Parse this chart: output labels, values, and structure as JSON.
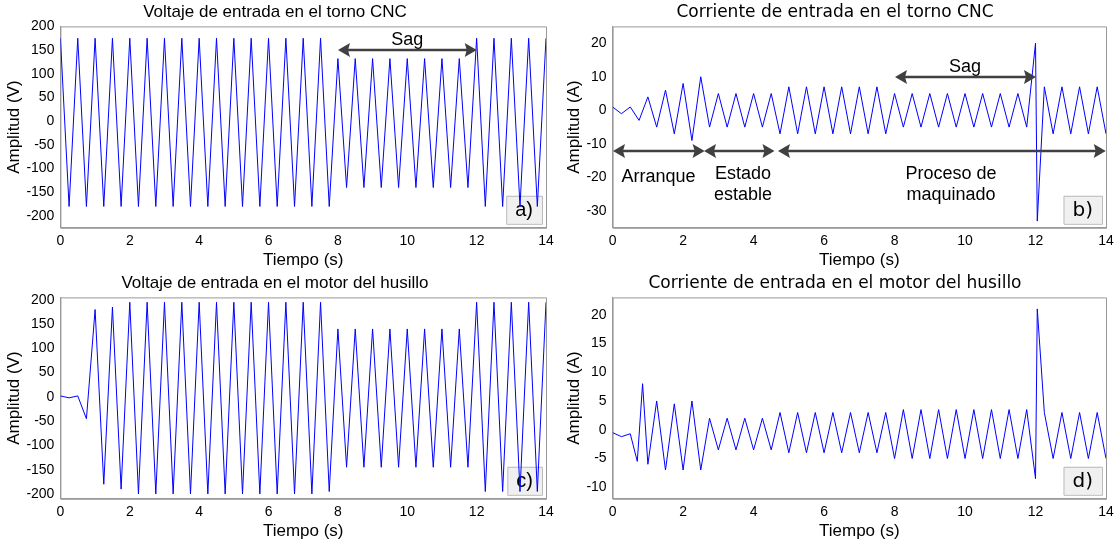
{
  "chart_data": [
    {
      "type": "line",
      "title": "Voltaje de entrada en el torno CNC",
      "xlabel": "Tiempo (s)",
      "ylabel": "Amplitud (V)",
      "xlim": [
        0,
        14
      ],
      "xticks": [
        0,
        2,
        4,
        6,
        8,
        10,
        12,
        14
      ],
      "ylim": [
        -225,
        200
      ],
      "yticks": [
        -200,
        -150,
        -100,
        -50,
        0,
        50,
        100,
        150,
        200
      ],
      "annotations": [
        "Sag",
        "a)"
      ],
      "series": [
        {
          "color": "#0000ff",
          "x": [
            0,
            0.25,
            0.5,
            0.75,
            1,
            1.25,
            1.5,
            1.75,
            2,
            2.25,
            2.5,
            2.75,
            3,
            3.25,
            3.5,
            3.75,
            4,
            4.25,
            4.5,
            4.75,
            5,
            5.25,
            5.5,
            5.75,
            6,
            6.25,
            6.5,
            6.75,
            7,
            7.25,
            7.5,
            7.75,
            8,
            8.25,
            8.5,
            8.75,
            9,
            9.25,
            9.5,
            9.75,
            10,
            10.25,
            10.5,
            10.75,
            11,
            11.25,
            11.5,
            11.75,
            12,
            12.25,
            12.5,
            12.75,
            13,
            13.25,
            13.5,
            13.75,
            14
          ],
          "values": [
            175,
            -180,
            175,
            -180,
            175,
            -180,
            175,
            -180,
            175,
            -180,
            175,
            -180,
            175,
            -180,
            175,
            -180,
            175,
            -180,
            175,
            -180,
            175,
            -180,
            175,
            -180,
            175,
            -180,
            175,
            -180,
            175,
            -180,
            175,
            -180,
            132,
            -140,
            132,
            -140,
            132,
            -140,
            132,
            -140,
            132,
            -140,
            132,
            -140,
            132,
            -140,
            132,
            -140,
            175,
            -180,
            175,
            -180,
            175,
            -180,
            175,
            -180,
            175
          ]
        }
      ]
    },
    {
      "type": "line",
      "title": "Corriente de entrada en el torno CNC",
      "xlabel": "Tiempo (s)",
      "ylabel": "Amplitud (A)",
      "xlim": [
        0,
        14
      ],
      "xticks": [
        0,
        2,
        4,
        6,
        8,
        10,
        12,
        14
      ],
      "ylim": [
        -35,
        25
      ],
      "yticks": [
        -30,
        -20,
        -10,
        0,
        10,
        20
      ],
      "annotations": [
        "Sag",
        "Arranque",
        "Estado estable",
        "Proceso de maquinado",
        "b)"
      ],
      "series": [
        {
          "color": "#0000ff",
          "x": [
            0,
            0.25,
            0.5,
            0.75,
            1,
            1.25,
            1.5,
            1.75,
            2,
            2.25,
            2.5,
            2.75,
            3,
            3.25,
            3.5,
            3.75,
            4,
            4.25,
            4.5,
            4.75,
            5,
            5.25,
            5.5,
            5.75,
            6,
            6.25,
            6.5,
            6.75,
            7,
            7.25,
            7.5,
            7.75,
            8,
            8.25,
            8.5,
            8.75,
            9,
            9.25,
            9.5,
            9.75,
            10,
            10.25,
            10.5,
            10.75,
            11,
            11.25,
            11.5,
            11.75,
            12,
            12.05,
            12.25,
            12.5,
            12.75,
            13,
            13.25,
            13.5,
            13.75,
            14
          ],
          "values": [
            1,
            -1,
            1,
            -3,
            4,
            -5,
            6,
            -7,
            8,
            -9,
            10,
            -5,
            5,
            -5,
            5,
            -5,
            5,
            -5,
            5,
            -7,
            7,
            -7,
            7,
            -7,
            7,
            -7,
            7,
            -7,
            7,
            -7,
            7,
            -7,
            5,
            -5,
            5,
            -5,
            5,
            -5,
            5,
            -5,
            5,
            -5,
            5,
            -5,
            5,
            -5,
            5,
            -5,
            20,
            -33,
            7,
            -7,
            7,
            -7,
            7,
            -7,
            7,
            -7
          ]
        }
      ]
    },
    {
      "type": "line",
      "title": "Voltaje de entrada en el motor del husillo",
      "xlabel": "Tiempo (s)",
      "ylabel": "Amplitud (V)",
      "xlim": [
        0,
        14
      ],
      "xticks": [
        0,
        2,
        4,
        6,
        8,
        10,
        12,
        14
      ],
      "ylim": [
        -210,
        205
      ],
      "yticks": [
        -200,
        -150,
        -100,
        -50,
        0,
        50,
        100,
        150,
        200
      ],
      "annotations": [
        "c)"
      ],
      "series": [
        {
          "color": "#0000ff",
          "x": [
            0,
            0.25,
            0.5,
            0.75,
            1,
            1.25,
            1.5,
            1.75,
            2,
            2.25,
            2.5,
            2.75,
            3,
            3.25,
            3.5,
            3.75,
            4,
            4.25,
            4.5,
            4.75,
            5,
            5.25,
            5.5,
            5.75,
            6,
            6.25,
            6.5,
            6.75,
            7,
            7.25,
            7.5,
            7.75,
            8,
            8.25,
            8.5,
            8.75,
            9,
            9.25,
            9.5,
            9.75,
            10,
            10.25,
            10.5,
            10.75,
            11,
            11.25,
            11.5,
            11.75,
            12,
            12.25,
            12.5,
            12.75,
            13,
            13.25,
            13.5,
            13.75,
            14
          ],
          "values": [
            2,
            -2,
            2,
            -45,
            180,
            -180,
            185,
            -190,
            195,
            -200,
            195,
            -200,
            195,
            -200,
            195,
            -200,
            195,
            -200,
            195,
            -200,
            195,
            -200,
            195,
            -200,
            195,
            -200,
            195,
            -200,
            195,
            -200,
            195,
            -195,
            140,
            -145,
            140,
            -145,
            140,
            -145,
            140,
            -145,
            140,
            -145,
            140,
            -145,
            140,
            -145,
            140,
            -145,
            195,
            -195,
            195,
            -195,
            195,
            -195,
            195,
            -195,
            195
          ]
        }
      ]
    },
    {
      "type": "line",
      "title": "Corriente de entrada en el motor del husillo",
      "xlabel": "Tiempo (s)",
      "ylabel": "Amplitud (A)",
      "xlim": [
        0,
        14
      ],
      "xticks": [
        0,
        2,
        4,
        6,
        8,
        10,
        12,
        14
      ],
      "ylim": [
        -12,
        23
      ],
      "yticks": [
        -10,
        -5,
        0,
        5,
        10,
        15,
        20
      ],
      "annotations": [
        "d)"
      ],
      "series": [
        {
          "color": "#0000ff",
          "x": [
            0,
            0.25,
            0.5,
            0.7,
            0.85,
            1,
            1.25,
            1.5,
            1.75,
            2,
            2.25,
            2.5,
            2.75,
            3,
            3.25,
            3.5,
            3.75,
            4,
            4.25,
            4.5,
            4.75,
            5,
            5.25,
            5.5,
            5.75,
            6,
            6.25,
            6.5,
            6.75,
            7,
            7.25,
            7.5,
            7.75,
            8,
            8.25,
            8.5,
            8.75,
            9,
            9.25,
            9.5,
            9.75,
            10,
            10.25,
            10.5,
            10.75,
            11,
            11.25,
            11.5,
            11.75,
            12,
            12.05,
            12.25,
            12.5,
            12.75,
            13,
            13.25,
            13.5,
            13.75,
            14
          ],
          "values": [
            -0.5,
            -1.2,
            -0.7,
            -5.5,
            8,
            -6,
            5,
            -7,
            4.5,
            -7,
            5,
            -7,
            2,
            -3.5,
            2,
            -3.5,
            2,
            -3.5,
            2,
            -3.5,
            3,
            -4,
            3,
            -4,
            3,
            -4,
            3,
            -4,
            3,
            -4,
            3,
            -4,
            3,
            -5,
            3.5,
            -5,
            3.5,
            -5,
            3.5,
            -5,
            3.5,
            -5,
            3.5,
            -5,
            3.5,
            -5,
            3.5,
            -5,
            3.5,
            -8.5,
            21,
            3,
            -5,
            3,
            -5,
            3,
            -5,
            3,
            -5
          ]
        }
      ]
    }
  ]
}
